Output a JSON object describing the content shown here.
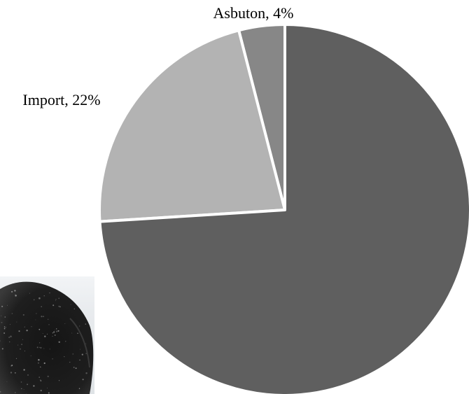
{
  "chart_data": {
    "type": "pie",
    "title": "",
    "start": "12 o'clock",
    "direction": "clockwise",
    "slices": [
      {
        "label": "Asbuton",
        "value": 4,
        "display": "Asbuton, 4%",
        "color": "#878787"
      },
      {
        "label": "Import",
        "value": 22,
        "display": "Import, 22%",
        "color": "#b3b3b3"
      },
      {
        "label": "",
        "value": 74,
        "display": "",
        "color": "#5f5f5f"
      }
    ],
    "slice_border_color": "#ffffff",
    "legend": "none"
  },
  "photo": {
    "icon": "asphalt-granules-photo",
    "content": "black granular material on white surface"
  }
}
